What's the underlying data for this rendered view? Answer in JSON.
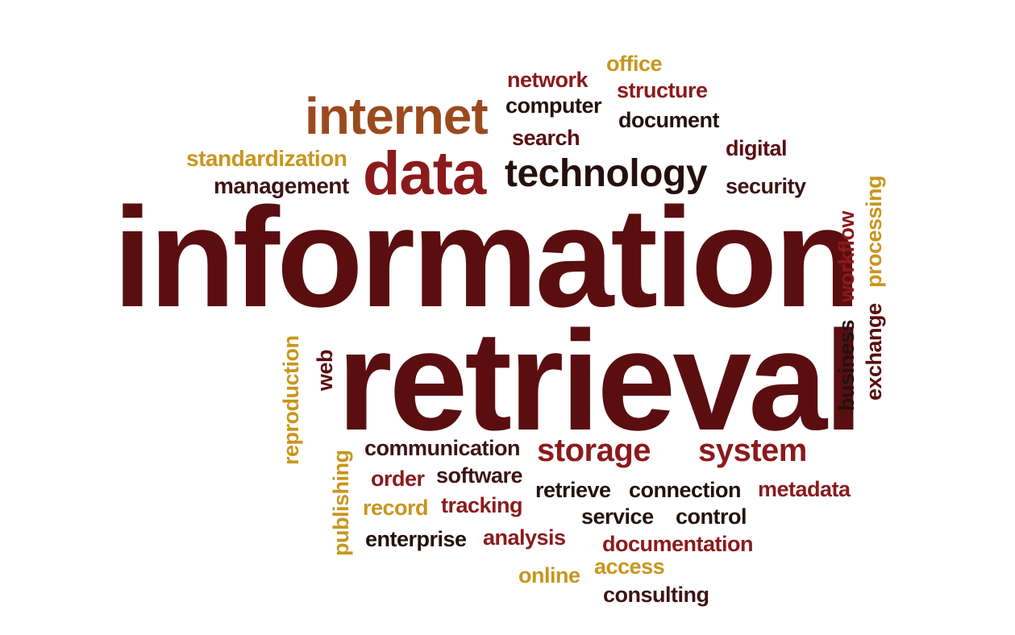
{
  "palette": {
    "maroon": "#5a0e10",
    "crimson": "#8b1a1c",
    "dark_brown": "#3d1414",
    "near_black": "#251010",
    "rust": "#9a4a1f",
    "gold": "#c8961e",
    "mustard": "#b98318"
  },
  "words": {
    "information": "information",
    "retrieval": "retrieval",
    "internet": "internet",
    "data": "data",
    "technology": "technology",
    "standardization": "standardization",
    "management": "management",
    "office": "office",
    "network": "network",
    "structure": "structure",
    "computer": "computer",
    "document": "document",
    "search": "search",
    "digital": "digital",
    "security": "security",
    "workflow": "workflow",
    "processing": "processing",
    "business": "business",
    "exchange": "exchange",
    "reproduction": "reproduction",
    "web": "web",
    "publishing": "publishing",
    "communication": "communication",
    "storage": "storage",
    "system": "system",
    "order": "order",
    "software": "software",
    "record": "record",
    "tracking": "tracking",
    "retrieve": "retrieve",
    "connection": "connection",
    "metadata": "metadata",
    "service": "service",
    "control": "control",
    "enterprise": "enterprise",
    "analysis": "analysis",
    "documentation": "documentation",
    "online": "online",
    "access": "access",
    "consulting": "consulting"
  }
}
